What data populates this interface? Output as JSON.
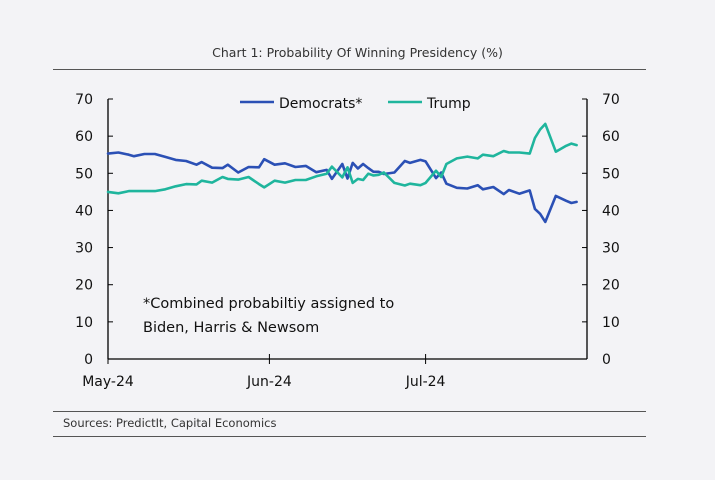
{
  "title": "Chart 1: Probability Of Winning Presidency (%)",
  "source": "Sources: PredictIt, Capital Economics",
  "chart_data": {
    "type": "line",
    "title": "Chart 1: Probability Of Winning Presidency (%)",
    "xlabel": "",
    "ylabel": "",
    "ylim": [
      0,
      70
    ],
    "yticks": [
      0,
      10,
      20,
      30,
      40,
      50,
      60,
      70
    ],
    "xlim": [
      "2024-05-01",
      "2024-08-01"
    ],
    "xticks": [
      {
        "date": "2024-05-01",
        "label": "May-24"
      },
      {
        "date": "2024-06-01",
        "label": "Jun-24"
      },
      {
        "date": "2024-07-01",
        "label": "Jul-24"
      }
    ],
    "grid": false,
    "legend": "top",
    "annotation": [
      "*Combined probabiltiy assigned to",
      "Biden, Harris & Newsom"
    ],
    "series": [
      {
        "name": "Democrats*",
        "color": "#2b50b5",
        "x": [
          "2024-05-01",
          "2024-05-03",
          "2024-05-05",
          "2024-05-06",
          "2024-05-08",
          "2024-05-10",
          "2024-05-12",
          "2024-05-14",
          "2024-05-16",
          "2024-05-18",
          "2024-05-19",
          "2024-05-21",
          "2024-05-23",
          "2024-05-24",
          "2024-05-26",
          "2024-05-28",
          "2024-05-30",
          "2024-05-31",
          "2024-06-02",
          "2024-06-04",
          "2024-06-06",
          "2024-06-08",
          "2024-06-10",
          "2024-06-12",
          "2024-06-13",
          "2024-06-15",
          "2024-06-16",
          "2024-06-17",
          "2024-06-18",
          "2024-06-19",
          "2024-06-20",
          "2024-06-21",
          "2024-06-22",
          "2024-06-23",
          "2024-06-25",
          "2024-06-27",
          "2024-06-28",
          "2024-06-30",
          "2024-07-01",
          "2024-07-03",
          "2024-07-04",
          "2024-07-05",
          "2024-07-07",
          "2024-07-09",
          "2024-07-11",
          "2024-07-12",
          "2024-07-14",
          "2024-07-16",
          "2024-07-17",
          "2024-07-19",
          "2024-07-21",
          "2024-07-22",
          "2024-07-23",
          "2024-07-24",
          "2024-07-26",
          "2024-07-28",
          "2024-07-29",
          "2024-07-30"
        ],
        "values": [
          55.3,
          55.6,
          55.0,
          54.6,
          55.2,
          55.2,
          54.4,
          53.6,
          53.3,
          52.3,
          53.0,
          51.5,
          51.4,
          52.3,
          50.2,
          51.7,
          51.6,
          53.8,
          52.3,
          52.7,
          51.7,
          52.0,
          50.3,
          50.9,
          48.5,
          52.5,
          48.6,
          52.8,
          51.3,
          52.5,
          51.4,
          50.4,
          50.4,
          49.8,
          50.2,
          53.3,
          52.8,
          53.6,
          53.2,
          48.7,
          50.2,
          47.2,
          46.1,
          45.9,
          46.8,
          45.7,
          46.3,
          44.4,
          45.5,
          44.5,
          45.4,
          40.4,
          39.1,
          36.9,
          43.9,
          42.6,
          42.0,
          42.3
        ]
      },
      {
        "name": "Trump",
        "color": "#1fb59d",
        "x": [
          "2024-05-01",
          "2024-05-03",
          "2024-05-05",
          "2024-05-06",
          "2024-05-08",
          "2024-05-10",
          "2024-05-12",
          "2024-05-14",
          "2024-05-16",
          "2024-05-18",
          "2024-05-19",
          "2024-05-21",
          "2024-05-23",
          "2024-05-24",
          "2024-05-26",
          "2024-05-28",
          "2024-05-30",
          "2024-05-31",
          "2024-06-02",
          "2024-06-04",
          "2024-06-06",
          "2024-06-08",
          "2024-06-10",
          "2024-06-12",
          "2024-06-13",
          "2024-06-15",
          "2024-06-16",
          "2024-06-17",
          "2024-06-18",
          "2024-06-19",
          "2024-06-20",
          "2024-06-21",
          "2024-06-22",
          "2024-06-23",
          "2024-06-25",
          "2024-06-27",
          "2024-06-28",
          "2024-06-30",
          "2024-07-01",
          "2024-07-03",
          "2024-07-04",
          "2024-07-05",
          "2024-07-07",
          "2024-07-09",
          "2024-07-11",
          "2024-07-12",
          "2024-07-14",
          "2024-07-16",
          "2024-07-17",
          "2024-07-19",
          "2024-07-21",
          "2024-07-22",
          "2024-07-23",
          "2024-07-24",
          "2024-07-26",
          "2024-07-28",
          "2024-07-29",
          "2024-07-30"
        ],
        "values": [
          45.0,
          44.6,
          45.2,
          45.2,
          45.2,
          45.2,
          45.7,
          46.5,
          47.1,
          47.0,
          48.0,
          47.5,
          49.0,
          48.5,
          48.3,
          49.0,
          47.1,
          46.2,
          48.0,
          47.5,
          48.2,
          48.2,
          49.2,
          49.9,
          51.8,
          48.9,
          51.6,
          47.4,
          48.5,
          48.2,
          49.9,
          49.4,
          49.6,
          50.2,
          47.4,
          46.7,
          47.2,
          46.8,
          47.4,
          50.7,
          49.0,
          52.5,
          54.0,
          54.5,
          54.0,
          55.0,
          54.6,
          56.0,
          55.6,
          55.6,
          55.3,
          59.5,
          61.8,
          63.3,
          55.8,
          57.4,
          58.0,
          57.6
        ]
      }
    ]
  }
}
